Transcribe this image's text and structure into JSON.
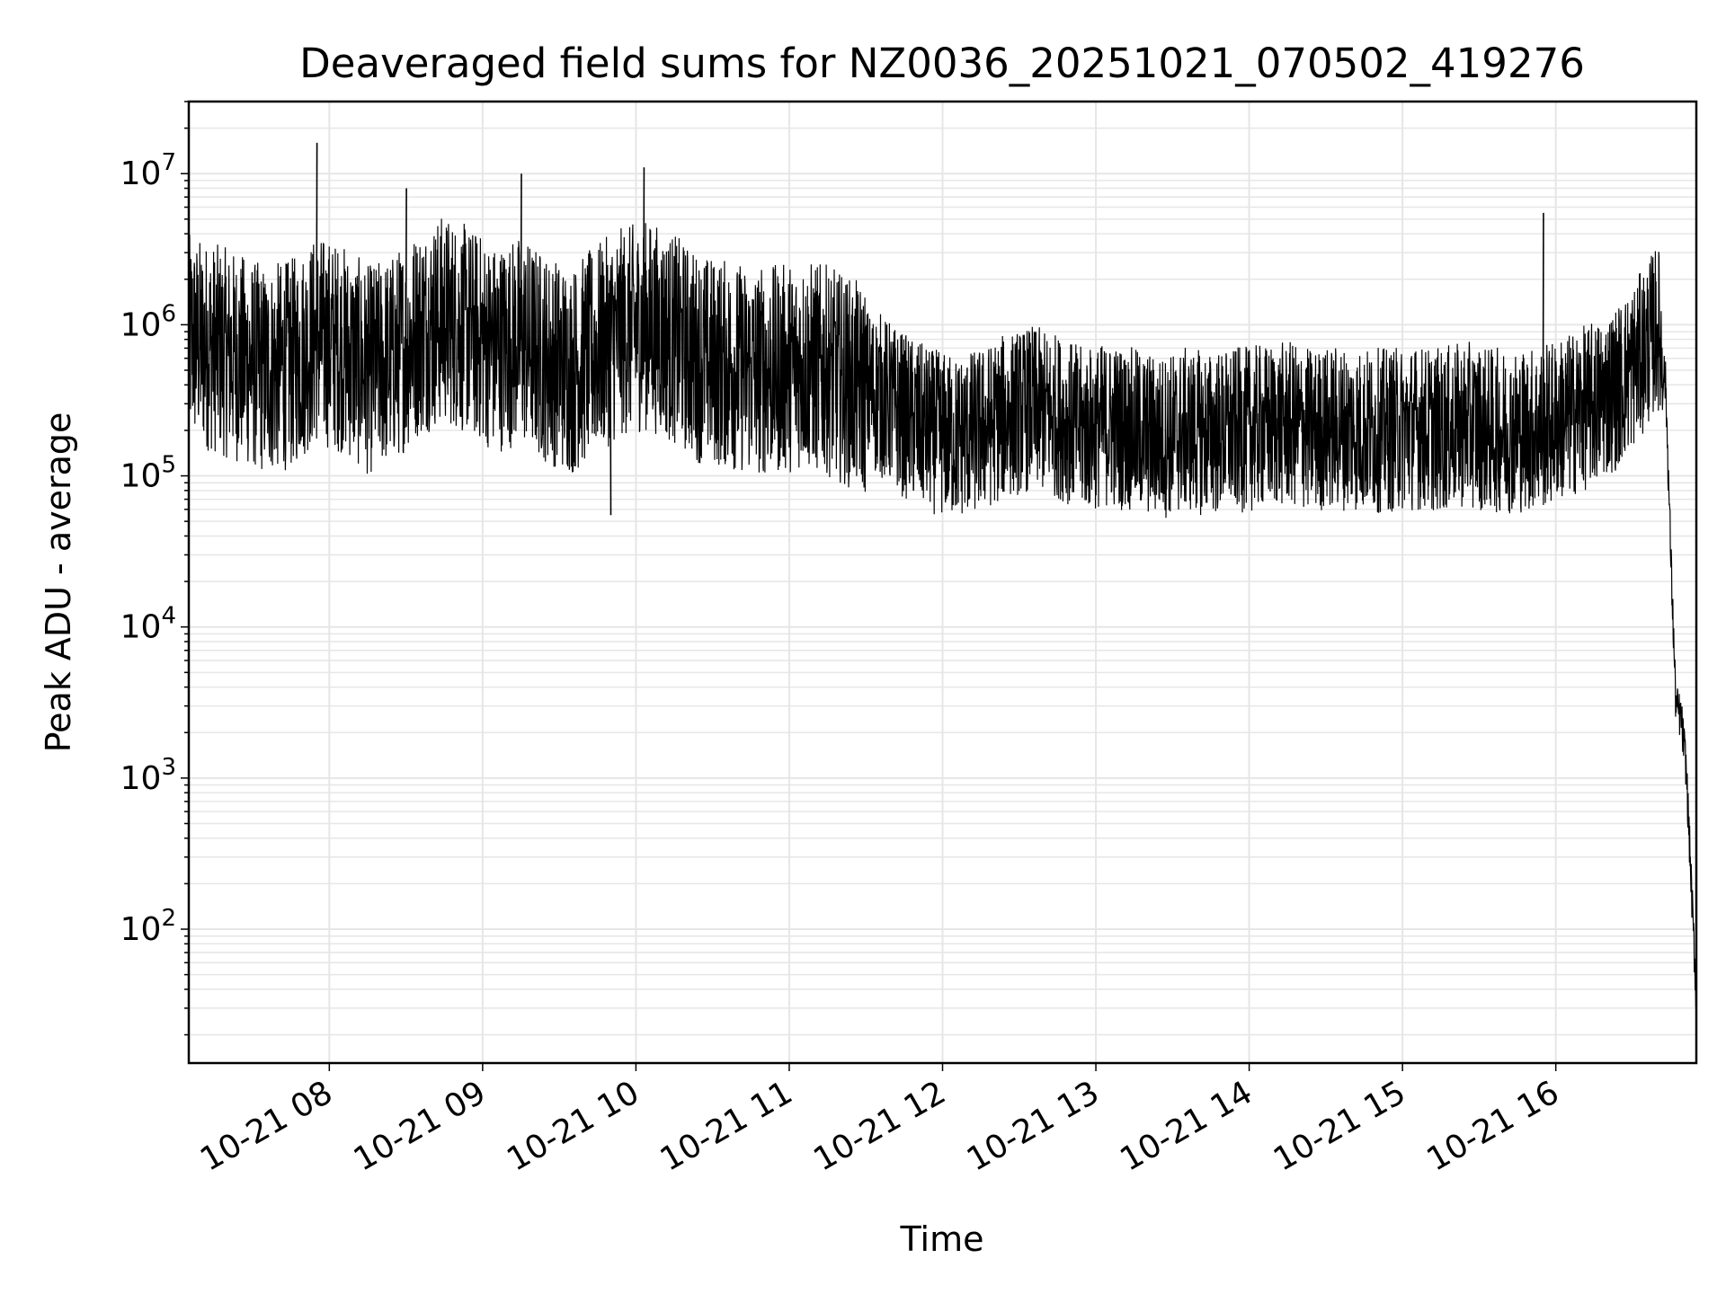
{
  "chart_data": {
    "type": "line",
    "title": "Deaveraged field sums for NZ0036_20251021_070502_419276",
    "xlabel": "Time",
    "ylabel": "Peak ADU - average",
    "yscale": "log",
    "ylim": [
      13,
      30000000
    ],
    "xlim": [
      "2025-10-21 07:05",
      "2025-10-21 16:55"
    ],
    "x_ticks": [
      "10-21 08",
      "10-21 09",
      "10-21 10",
      "10-21 11",
      "10-21 12",
      "10-21 13",
      "10-21 14",
      "10-21 15",
      "10-21 16"
    ],
    "y_ticks": [
      {
        "base": "10",
        "exp": "2",
        "value": 100
      },
      {
        "base": "10",
        "exp": "3",
        "value": 1000
      },
      {
        "base": "10",
        "exp": "4",
        "value": 10000
      },
      {
        "base": "10",
        "exp": "5",
        "value": 100000
      },
      {
        "base": "10",
        "exp": "6",
        "value": 1000000
      },
      {
        "base": "10",
        "exp": "7",
        "value": 10000000
      }
    ],
    "grid": true,
    "line_color": "#000000",
    "grid_color": "#e6e6e6",
    "series": [
      {
        "x": [
          "07:05",
          "07:15",
          "07:25",
          "07:35",
          "07:45",
          "07:55",
          "08:05",
          "08:15",
          "08:25",
          "08:35",
          "08:45",
          "08:55",
          "09:05",
          "09:15",
          "09:25",
          "09:35",
          "09:45",
          "09:55",
          "10:05",
          "10:15",
          "10:25",
          "10:35",
          "10:45",
          "10:55",
          "11:05",
          "11:15",
          "11:25",
          "11:35",
          "11:45",
          "11:55",
          "12:05",
          "12:15",
          "12:25",
          "12:35",
          "12:45",
          "12:55",
          "13:05",
          "13:15",
          "13:25",
          "13:35",
          "13:45",
          "13:55",
          "14:05",
          "14:15",
          "14:25",
          "14:35",
          "14:45",
          "14:55",
          "15:05",
          "15:15",
          "15:25",
          "15:35",
          "15:45",
          "15:55",
          "16:05",
          "16:15",
          "16:25",
          "16:35",
          "16:40",
          "16:43",
          "16:45",
          "16:47",
          "16:49",
          "16:51",
          "16:53",
          "16:55"
        ],
        "values": [
          800000,
          700000,
          600000,
          500000,
          550000,
          800000,
          700000,
          500000,
          600000,
          900000,
          1100000,
          900000,
          700000,
          800000,
          600000,
          500000,
          700000,
          900000,
          1000000,
          800000,
          600000,
          550000,
          500000,
          500000,
          550000,
          500000,
          400000,
          350000,
          250000,
          200000,
          180000,
          200000,
          250000,
          280000,
          250000,
          200000,
          220000,
          200000,
          180000,
          200000,
          190000,
          200000,
          210000,
          220000,
          200000,
          210000,
          200000,
          200000,
          210000,
          200000,
          220000,
          200000,
          200000,
          210000,
          250000,
          300000,
          400000,
          700000,
          1000000,
          400000,
          30000,
          3000,
          2500,
          1200,
          200,
          35
        ],
        "peaks": [
          {
            "x": "07:55",
            "value": 16000000
          },
          {
            "x": "08:30",
            "value": 8000000
          },
          {
            "x": "09:15",
            "value": 10000000
          },
          {
            "x": "10:03",
            "value": 11000000
          },
          {
            "x": "15:55",
            "value": 5500000
          },
          {
            "x": "09:50",
            "value": 55000
          }
        ]
      }
    ]
  }
}
